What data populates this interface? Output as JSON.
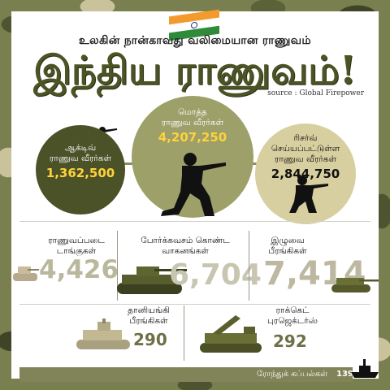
{
  "header": {
    "headline": "உலகின் நான்காவது  வலிமையான ராணுவம்",
    "title": "இந்திய ராணுவம்!",
    "source": "source : Global Firepower"
  },
  "personnel": {
    "active": {
      "label_line1": "ஆக்டிவ்",
      "label_line2": "ராணுவ வீரர்கள்",
      "value": "1,362,500"
    },
    "total": {
      "label_line1": "மொத்த",
      "label_line2": "ராணுவ வீரர்கள்",
      "value": "4,207,250"
    },
    "reserve": {
      "label_line1": "ரிசர்வ்",
      "label_line2": "செய்யப்பட்டுள்ள",
      "label_line3": "ராணுவ வீரர்கள்",
      "value": "2,844,750"
    }
  },
  "equipment": {
    "tanks": {
      "label_line1": "ராணுவப்படை",
      "label_line2": "டாங்குகள்",
      "value": "4,426"
    },
    "armored": {
      "label_line1": "போர்க்கவசம் கொண்ட",
      "label_line2": "வாகனங்கள்",
      "value": "6,704"
    },
    "towed": {
      "label_line1": "இழுவை",
      "label_line2": "பீரங்கிகள்",
      "value": "7,414"
    },
    "self_propelled": {
      "label_line1": "தானியங்கி",
      "label_line2": "பீரங்கிகள்",
      "value": "290"
    },
    "rocket": {
      "label_line1": "ராக்கெட்",
      "label_line2": "புரஜெக்டர்ஸ்",
      "value": "292"
    }
  },
  "navy": {
    "label": "ரோந்துக் கப்பல்கள்",
    "value": "139"
  },
  "colors": {
    "olive_dark": "#4c5228",
    "olive_mid": "#9ea06a",
    "khaki": "#d8cfa0",
    "yellow": "#ffd23c"
  }
}
